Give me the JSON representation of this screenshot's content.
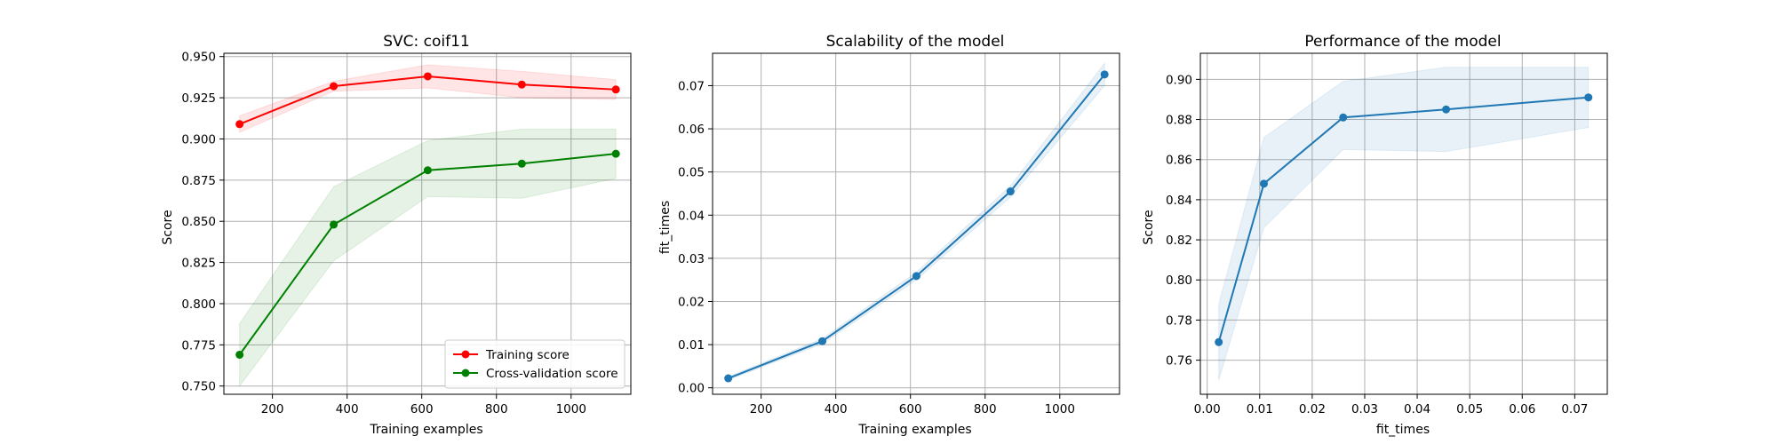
{
  "chart_data": [
    {
      "type": "line",
      "title": "SVC: coif11",
      "xlabel": "Training examples",
      "ylabel": "Score",
      "xlim": [
        70,
        1160
      ],
      "ylim": [
        0.745,
        0.952
      ],
      "xticks": [
        200,
        400,
        600,
        800,
        1000
      ],
      "yticks": [
        0.75,
        0.775,
        0.8,
        0.825,
        0.85,
        0.875,
        0.9,
        0.925,
        0.95
      ],
      "ytick_decimals": 3,
      "grid": true,
      "legend": "lower-right",
      "x": [
        112,
        364,
        616,
        868,
        1120
      ],
      "series": [
        {
          "name": "Training score",
          "color": "#ff0000",
          "band_color": "#ff0000",
          "values": [
            0.909,
            0.932,
            0.938,
            0.933,
            0.93
          ],
          "lower": [
            0.904,
            0.929,
            0.931,
            0.925,
            0.924
          ],
          "upper": [
            0.914,
            0.935,
            0.945,
            0.941,
            0.936
          ]
        },
        {
          "name": "Cross-validation score",
          "color": "#008000",
          "band_color": "#008000",
          "values": [
            0.769,
            0.848,
            0.881,
            0.885,
            0.891
          ],
          "lower": [
            0.75,
            0.826,
            0.865,
            0.864,
            0.876
          ],
          "upper": [
            0.788,
            0.871,
            0.899,
            0.906,
            0.906
          ]
        }
      ]
    },
    {
      "type": "line",
      "title": "Scalability of the model",
      "xlabel": "Training examples",
      "ylabel": "fit_times",
      "xlim": [
        70,
        1160
      ],
      "ylim": [
        -0.0015,
        0.0775
      ],
      "xticks": [
        200,
        400,
        600,
        800,
        1000
      ],
      "yticks": [
        0.0,
        0.01,
        0.02,
        0.03,
        0.04,
        0.05,
        0.06,
        0.07
      ],
      "ytick_decimals": 2,
      "grid": true,
      "x": [
        112,
        364,
        616,
        868,
        1120
      ],
      "series": [
        {
          "color": "#1f77b4",
          "band_color": "#1f77b4",
          "values": [
            0.0022,
            0.0108,
            0.0259,
            0.0455,
            0.0726
          ],
          "lower": [
            0.0018,
            0.0102,
            0.025,
            0.0442,
            0.07
          ],
          "upper": [
            0.0026,
            0.0114,
            0.0268,
            0.0468,
            0.0752
          ]
        }
      ]
    },
    {
      "type": "line",
      "title": "Performance of the model",
      "xlabel": "fit_times",
      "ylabel": "Score",
      "xlim": [
        -0.0013,
        0.0762
      ],
      "ylim": [
        0.743,
        0.913
      ],
      "xticks": [
        0.0,
        0.01,
        0.02,
        0.03,
        0.04,
        0.05,
        0.06,
        0.07
      ],
      "xtick_decimals": 2,
      "yticks": [
        0.76,
        0.78,
        0.8,
        0.82,
        0.84,
        0.86,
        0.88,
        0.9
      ],
      "ytick_decimals": 2,
      "grid": true,
      "x": [
        0.0022,
        0.0108,
        0.0259,
        0.0455,
        0.0726
      ],
      "series": [
        {
          "color": "#1f77b4",
          "band_color": "#1f77b4",
          "values": [
            0.769,
            0.848,
            0.881,
            0.885,
            0.891
          ],
          "lower": [
            0.75,
            0.826,
            0.865,
            0.864,
            0.876
          ],
          "upper": [
            0.788,
            0.871,
            0.899,
            0.906,
            0.906
          ]
        }
      ]
    }
  ]
}
